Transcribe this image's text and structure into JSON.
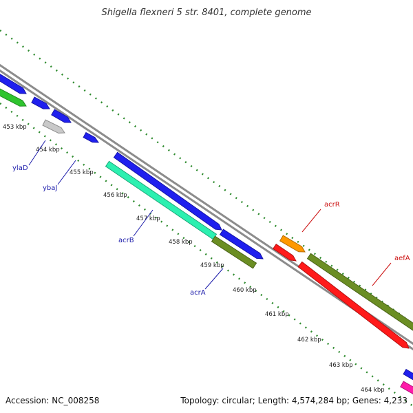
{
  "title": "Shigella flexneri 5 str. 8401, complete genome",
  "accession": "Accession: NC_008258",
  "summary": "Topology: circular; Length: 4,574,284 bp; Genes: 4,233",
  "colors": {
    "backbone": "#8c8c8c",
    "ticks": "#2e8b2e",
    "minus_label": "#1a1aaa",
    "plus_label": "#cc1111"
  },
  "kbp_labels": [
    "453 kbp",
    "454 kbp",
    "455 kbp",
    "456 kbp",
    "457 kbp",
    "458 kbp",
    "459 kbp",
    "460 kbp",
    "461 kbp",
    "462 kbp",
    "463 kbp",
    "464 kbp"
  ],
  "gene_labels": [
    {
      "text": "ylaD",
      "strand": "minus"
    },
    {
      "text": "ybaJ",
      "strand": "minus"
    },
    {
      "text": "acrB",
      "strand": "minus"
    },
    {
      "text": "acrA",
      "strand": "minus"
    },
    {
      "text": "acrR",
      "strand": "plus"
    },
    {
      "text": "aefA",
      "strand": "plus"
    }
  ],
  "features": [
    {
      "gene": "",
      "color": "#1f1fee"
    },
    {
      "gene": "",
      "color": "#2fc42f"
    },
    {
      "gene": "",
      "color": "#1f1fee"
    },
    {
      "gene": "",
      "color": "#1f1fee"
    },
    {
      "gene": "ylaD",
      "color": "#c9c9c9"
    },
    {
      "gene": "ybaJ",
      "color": "#1f1fee"
    },
    {
      "gene": "acrB",
      "color": "#1f1fee"
    },
    {
      "gene": "acrB",
      "color": "#2cf0b0"
    },
    {
      "gene": "",
      "color": "#1f1fee"
    },
    {
      "gene": "acrA",
      "color": "#6b8e23"
    },
    {
      "gene": "acrR",
      "color": "#ff9900"
    },
    {
      "gene": "",
      "color": "#ff1a1a"
    },
    {
      "gene": "aefA",
      "color": "#6b8e23"
    },
    {
      "gene": "",
      "color": "#ff1a1a"
    },
    {
      "gene": "",
      "color": "#1f1fee"
    },
    {
      "gene": "",
      "color": "#ff1aaa"
    }
  ]
}
